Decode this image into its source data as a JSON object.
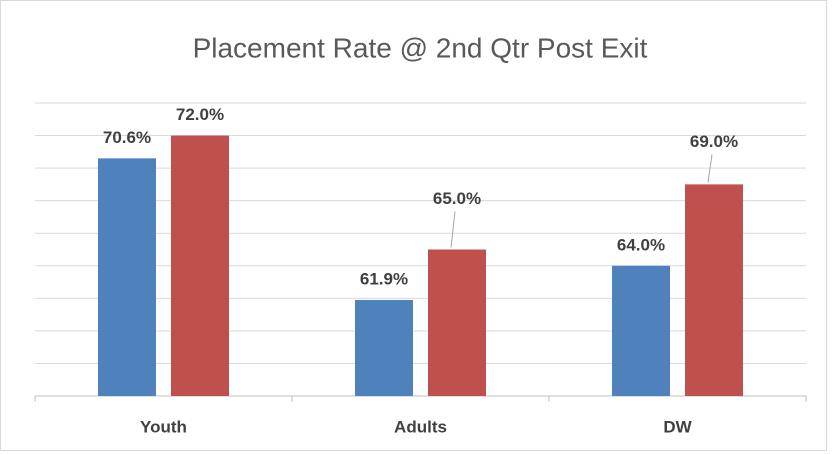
{
  "chart_data": {
    "type": "bar",
    "title": "Placement Rate @ 2nd Qtr Post Exit",
    "categories": [
      "Youth",
      "Adults",
      "DW"
    ],
    "series": [
      {
        "color": "#4f81bd",
        "values": [
          70.6,
          61.9,
          64.0
        ],
        "value_labels": [
          "70.6%",
          "61.9%",
          "64.0%"
        ]
      },
      {
        "color": "#c0504d",
        "values": [
          72.0,
          65.0,
          69.0
        ],
        "value_labels": [
          "72.0%",
          "65.0%",
          "69.0%"
        ]
      }
    ],
    "ylim": [
      56,
      74
    ],
    "yticks": [
      56,
      58,
      60,
      62,
      64,
      66,
      68,
      70,
      72,
      74
    ],
    "grid": true
  }
}
